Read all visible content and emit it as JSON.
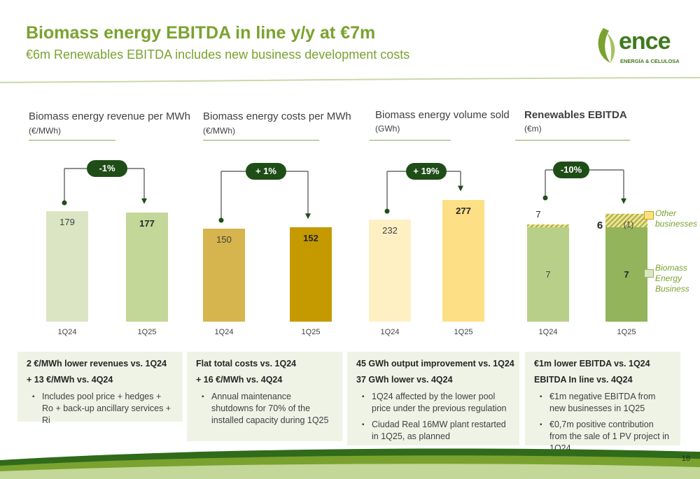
{
  "title": "Biomass energy EBITDA in line y/y at €7m",
  "subtitle": "€6m Renewables EBITDA includes new business development costs",
  "logo": {
    "name": "ence",
    "tagline": "ENERGÍA & CELULOSA"
  },
  "page_number": "18",
  "colors": {
    "brand_green": "#7aa22f",
    "dark_green": "#1f4d17",
    "revenue_1q24": "#dbe5c4",
    "revenue_1q25": "#c2d798",
    "costs_1q24": "#d6b44e",
    "costs_1q25": "#c49a00",
    "volume_1q24": "#fff0c4",
    "volume_1q25": "#fddf85",
    "ebitda_1q24": "#b8cf8a",
    "ebitda_1q25": "#93b45a",
    "box_bg": "#eef3e6"
  },
  "chart_data": [
    {
      "type": "bar",
      "title": "Biomass energy revenue per MWh",
      "unit": "(€/MWh)",
      "categories": [
        "1Q24",
        "1Q25"
      ],
      "values": [
        179,
        177
      ],
      "value_labels": [
        "179",
        "177"
      ],
      "change": "-1%"
    },
    {
      "type": "bar",
      "title": "Biomass energy costs per MWh",
      "unit": "(€/MWh)",
      "categories": [
        "1Q24",
        "1Q25"
      ],
      "values": [
        150,
        152
      ],
      "value_labels": [
        "150",
        "152"
      ],
      "change": "+ 1%"
    },
    {
      "type": "bar",
      "title": "Biomass energy volume sold",
      "unit": "(GWh)",
      "categories": [
        "1Q24",
        "1Q25"
      ],
      "values": [
        232,
        277
      ],
      "value_labels": [
        "232",
        "277"
      ],
      "change": "+ 19%"
    },
    {
      "type": "bar",
      "stacked": true,
      "title": "Renewables EBITDA",
      "unit": "(€m)",
      "categories": [
        "1Q24",
        "1Q25"
      ],
      "series": [
        {
          "name": "Biomass Energy Business",
          "values": [
            7,
            7
          ],
          "labels": [
            "7",
            "7"
          ]
        },
        {
          "name": "Other businesses",
          "values": [
            0,
            -1
          ],
          "labels": [
            "",
            "(1)"
          ]
        }
      ],
      "totals": [
        7,
        6
      ],
      "total_labels": [
        "7",
        "6"
      ],
      "change": "-10%",
      "legend": [
        "Other businesses",
        "Biomass Energy Business"
      ],
      "legend_position": "right"
    }
  ],
  "boxes": [
    {
      "line1": "2 €/MWh lower revenues vs. 1Q24",
      "line2": "+ 13 €/MWh vs. 4Q24",
      "bullets": [
        "Includes pool price + hedges + Ro + back-up ancillary services + Ri"
      ]
    },
    {
      "line1": "Flat total costs vs. 1Q24",
      "line2": "+ 16 €/MWh vs. 4Q24",
      "bullets": [
        "Annual maintenance shutdowns for 70% of the installed capacity during 1Q25"
      ]
    },
    {
      "line1": "45 GWh output improvement vs. 1Q24",
      "line2": "37 GWh lower vs. 4Q24",
      "bullets": [
        "1Q24 affected by the lower pool price under the previous regulation",
        "Ciudad Real 16MW plant restarted in 1Q25, as planned"
      ]
    },
    {
      "line1": "€1m lower EBITDA vs. 1Q24",
      "line2": "EBITDA In line vs. 4Q24",
      "bullets": [
        "€1m negative EBITDA from new businesses in 1Q25",
        "€0,7m positive contribution from the sale of 1 PV project in 1Q24"
      ]
    }
  ]
}
